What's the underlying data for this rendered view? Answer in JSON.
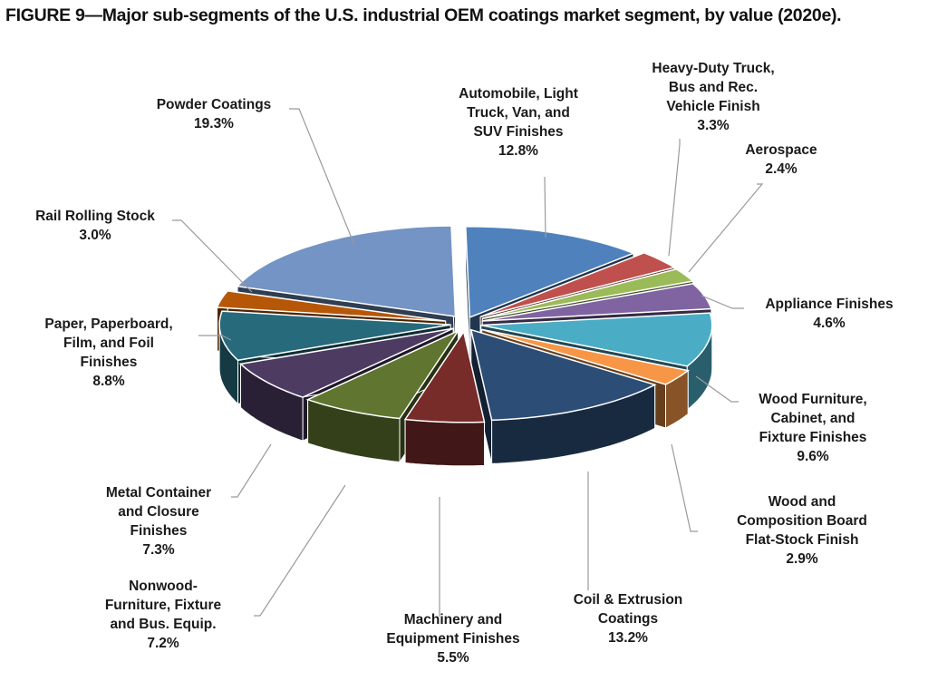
{
  "figure_title": "FIGURE 9—Major sub-segments of the U.S. industrial OEM coatings market segment, by value (2020e).",
  "chart_data": {
    "type": "pie",
    "title": "FIGURE 9—Major sub-segments of the U.S. industrial OEM coatings market segment, by value (2020e).",
    "style": "3d-exploded",
    "unit": "%",
    "slices": [
      {
        "lines": [
          "Automobile, Light",
          "Truck, Van, and",
          "SUV Finishes"
        ],
        "value": 12.8,
        "pct": "12.8%",
        "color": "#4f81bd"
      },
      {
        "lines": [
          "Heavy-Duty Truck,",
          "Bus and Rec.",
          "Vehicle Finish"
        ],
        "value": 3.3,
        "pct": "3.3%",
        "color": "#c0504d"
      },
      {
        "lines": [
          "Aerospace"
        ],
        "value": 2.4,
        "pct": "2.4%",
        "color": "#9bbb59"
      },
      {
        "lines": [
          "Appliance Finishes"
        ],
        "value": 4.6,
        "pct": "4.6%",
        "color": "#8064a2"
      },
      {
        "lines": [
          "Wood Furniture,",
          "Cabinet, and",
          "Fixture Finishes"
        ],
        "value": 9.6,
        "pct": "9.6%",
        "color": "#4bacc6"
      },
      {
        "lines": [
          "Wood and",
          "Composition Board",
          "Flat-Stock Finish"
        ],
        "value": 2.9,
        "pct": "2.9%",
        "color": "#f79646"
      },
      {
        "lines": [
          "Coil & Extrusion",
          "Coatings"
        ],
        "value": 13.2,
        "pct": "13.2%",
        "color": "#2c4d75"
      },
      {
        "lines": [
          "Machinery and",
          "Equipment Finishes"
        ],
        "value": 5.5,
        "pct": "5.5%",
        "color": "#772c2a"
      },
      {
        "lines": [
          "Nonwood-",
          "Furniture, Fixture",
          "and Bus. Equip."
        ],
        "value": 7.2,
        "pct": "7.2%",
        "color": "#5f7530"
      },
      {
        "lines": [
          "Metal Container",
          "and Closure",
          "Finishes"
        ],
        "value": 7.3,
        "pct": "7.3%",
        "color": "#4d3b62"
      },
      {
        "lines": [
          "Paper, Paperboard,",
          "Film, and Foil",
          "Finishes"
        ],
        "value": 8.8,
        "pct": "8.8%",
        "color": "#276a7c"
      },
      {
        "lines": [
          "Rail Rolling Stock"
        ],
        "value": 3.0,
        "pct": "3.0%",
        "color": "#b65708"
      },
      {
        "lines": [
          "Powder Coatings"
        ],
        "value": 19.3,
        "pct": "19.3%",
        "color": "#7394c4"
      }
    ]
  }
}
